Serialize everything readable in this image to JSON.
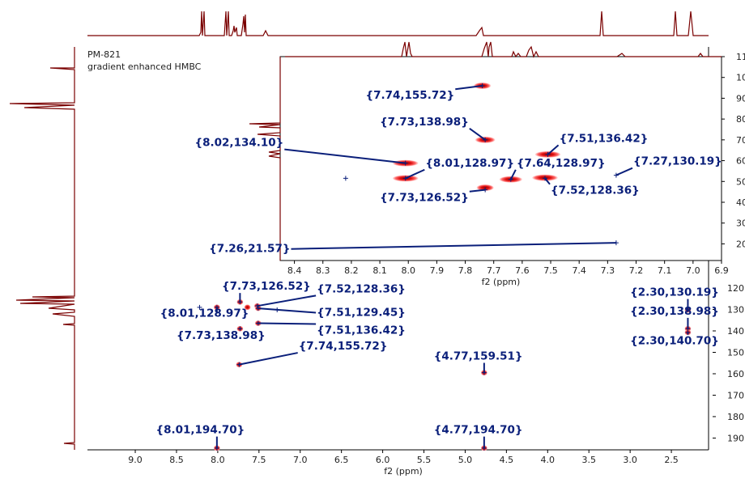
{
  "header": {
    "sample_id": "PM-821",
    "experiment": "gradient enhanced HMBC"
  },
  "colors": {
    "spectrum": "#7a0000",
    "label_text": "#0a1f7a",
    "crosspeak_outer": "#ffb8b8",
    "crosspeak_core": "#cc0000",
    "axis": "#000000"
  },
  "chart_data": [
    {
      "type": "scatter",
      "name": "full HMBC spectrum",
      "xlabel": "f2 (ppm)",
      "ylabel": "",
      "xlim": [
        9.5,
        2.0
      ],
      "ylim": [
        195.5,
        12
      ],
      "x_ticks": [
        "9.0",
        "8.5",
        "8.0",
        "7.5",
        "7.0",
        "6.5",
        "6.0",
        "5.5",
        "5.0",
        "4.5",
        "4.0",
        "3.5",
        "3.0",
        "2.5"
      ],
      "y_ticks": [
        "120",
        "130",
        "140",
        "150",
        "160",
        "170",
        "180",
        "190"
      ],
      "peaks": [
        {
          "x": 7.73,
          "y": 126.52
        },
        {
          "x": 7.64,
          "y": 128.97
        },
        {
          "x": 7.52,
          "y": 128.36
        },
        {
          "x": 8.01,
          "y": 128.97
        },
        {
          "x": 7.51,
          "y": 129.45
        },
        {
          "x": 7.73,
          "y": 138.98
        },
        {
          "x": 7.51,
          "y": 136.42
        },
        {
          "x": 7.74,
          "y": 155.72
        },
        {
          "x": 2.3,
          "y": 130.19
        },
        {
          "x": 2.3,
          "y": 138.98
        },
        {
          "x": 2.3,
          "y": 140.7
        },
        {
          "x": 4.77,
          "y": 159.51
        },
        {
          "x": 8.01,
          "y": 194.7
        },
        {
          "x": 4.77,
          "y": 194.7
        }
      ],
      "crosses": [
        {
          "x": 8.22,
          "y": 129.0
        },
        {
          "x": 7.28,
          "y": 130.2
        }
      ],
      "annotations": [
        {
          "text": "{7.73,126.52}",
          "x": 7.73,
          "y": 126.52,
          "tx": 7.95,
          "ty": 120.8
        },
        {
          "text": "{7.52,128.36}",
          "x": 7.52,
          "y": 128.36,
          "tx": 6.8,
          "ty": 122.0
        },
        {
          "text": "{8.01,128.97}",
          "x": 8.01,
          "y": 128.97,
          "tx": 8.7,
          "ty": 133.4
        },
        {
          "text": "{7.51,129.45}",
          "x": 7.51,
          "y": 129.45,
          "tx": 6.8,
          "ty": 133.0
        },
        {
          "text": "{7.73,138.98}",
          "x": 7.73,
          "y": 138.98,
          "tx": 8.5,
          "ty": 143.8
        },
        {
          "text": "{7.51,136.42}",
          "x": 7.51,
          "y": 136.42,
          "tx": 6.8,
          "ty": 141.3
        },
        {
          "text": "{7.74,155.72}",
          "x": 7.74,
          "y": 155.72,
          "tx": 7.02,
          "ty": 148.7
        },
        {
          "text": "{2.30,130.19}",
          "x": 2.3,
          "y": 130.19,
          "tx": 3.0,
          "ty": 123.6
        },
        {
          "text": "{2.30,138.98}",
          "x": 2.3,
          "y": 138.98,
          "tx": 3.0,
          "ty": 132.4
        },
        {
          "text": "{2.30,140.70}",
          "x": 2.3,
          "y": 140.7,
          "tx": 3.0,
          "ty": 146.2
        },
        {
          "text": "{4.77,159.51}",
          "x": 4.77,
          "y": 159.51,
          "tx": 5.38,
          "ty": 153.4
        },
        {
          "text": "{8.01,194.70}",
          "x": 8.01,
          "y": 194.7,
          "tx": 8.75,
          "ty": 187.8
        },
        {
          "text": "{4.77,194.70}",
          "x": 4.77,
          "y": 194.7,
          "tx": 5.38,
          "ty": 187.8
        }
      ]
    },
    {
      "type": "scatter",
      "name": "expanded region inset",
      "xlabel": "f2 (ppm)",
      "ylabel": "",
      "xlim": [
        8.45,
        6.9
      ],
      "ylim": [
        12,
        110
      ],
      "x_ticks": [
        "8.4",
        "8.3",
        "8.2",
        "8.1",
        "8.0",
        "7.9",
        "7.8",
        "7.7",
        "7.6",
        "7.5",
        "7.4",
        "7.3",
        "7.2",
        "7.1",
        "7.0",
        "6.9"
      ],
      "y_ticks": [
        "20",
        "30",
        "40",
        "50",
        "60",
        "70",
        "80",
        "90",
        "100",
        "110"
      ],
      "peaks": [
        {
          "x": 7.73,
          "y": 47.0,
          "w": 0.03
        },
        {
          "x": 8.01,
          "y": 51.5,
          "w": 0.045
        },
        {
          "x": 7.64,
          "y": 51.0,
          "w": 0.04
        },
        {
          "x": 7.52,
          "y": 51.8,
          "w": 0.045
        },
        {
          "x": 8.01,
          "y": 58.8,
          "w": 0.045
        },
        {
          "x": 7.51,
          "y": 63.0,
          "w": 0.045
        },
        {
          "x": 7.73,
          "y": 70.0,
          "w": 0.035
        },
        {
          "x": 7.74,
          "y": 96.0,
          "w": 0.03
        }
      ],
      "crosses": [
        {
          "x": 8.22,
          "y": 51.5
        }
      ],
      "annotations": [
        {
          "text": "{7.26,21.57}",
          "x": 7.27,
          "y": 20.5,
          "tx": 8.7,
          "ty": 16.0
        },
        {
          "text": "{7.73,126.52}",
          "x": 7.73,
          "y": 46.0,
          "tx": 8.1,
          "ty": 40.5
        },
        {
          "text": "{7.52,128.36}",
          "x": 7.52,
          "y": 51.5,
          "tx": 7.5,
          "ty": 44.0
        },
        {
          "text": "{8.01,128.97}",
          "x": 8.01,
          "y": 51.5,
          "tx": 7.94,
          "ty": 57.2
        },
        {
          "text": "{7.64,128.97}",
          "x": 7.64,
          "y": 51.0,
          "tx": 7.62,
          "ty": 57.2
        },
        {
          "text": "{7.27,130.19}",
          "x": 7.27,
          "y": 53.0,
          "tx": 7.21,
          "ty": 58.0
        },
        {
          "text": "{8.02,134.10}",
          "x": 8.01,
          "y": 58.8,
          "tx": 8.75,
          "ty": 67.0
        },
        {
          "text": "{7.51,136.42}",
          "x": 7.51,
          "y": 63.0,
          "tx": 7.47,
          "ty": 69.0
        },
        {
          "text": "{7.73,138.98}",
          "x": 7.73,
          "y": 70.0,
          "tx": 8.1,
          "ty": 77.0
        },
        {
          "text": "{7.74,155.72}",
          "x": 7.74,
          "y": 96.0,
          "tx": 8.15,
          "ty": 89.7
        }
      ]
    }
  ]
}
